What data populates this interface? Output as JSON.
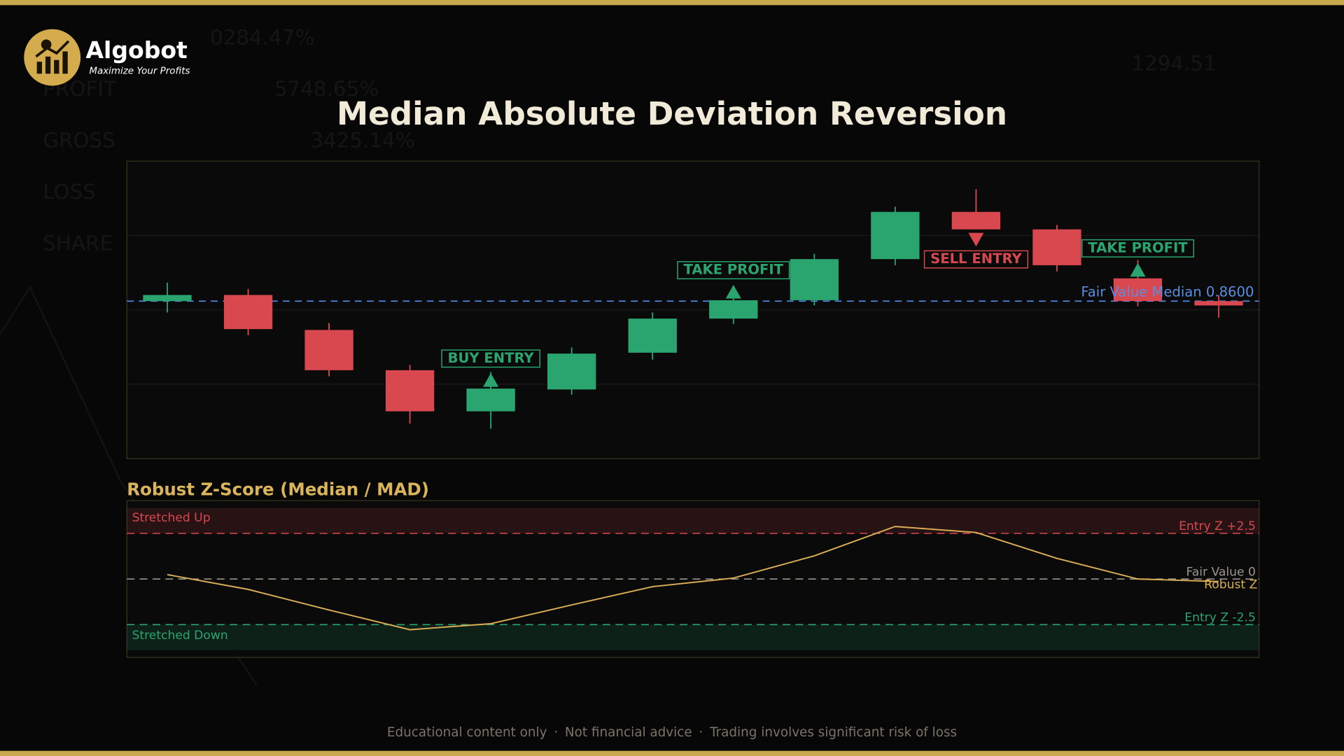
{
  "header": {
    "brand": "Algobot",
    "tagline": "Maximize Your Profits",
    "title": "Median Absolute Deviation Reversion"
  },
  "background": {
    "labels": [
      "0284.47%",
      "PROFIT",
      "5748.65%",
      "GROSS",
      "3425.14%",
      "LOSS",
      "SHARE",
      "1294.51"
    ]
  },
  "chart_data": [
    {
      "type": "candlestick",
      "open": [
        0.86,
        0.8607,
        0.8567,
        0.8521,
        0.8474,
        0.8499,
        0.8541,
        0.858,
        0.8601,
        0.8648,
        0.8702,
        0.8682,
        0.8626,
        0.86
      ],
      "high": [
        0.8621,
        0.8614,
        0.8575,
        0.8527,
        0.8519,
        0.8547,
        0.8587,
        0.8608,
        0.8654,
        0.8708,
        0.8728,
        0.8687,
        0.8647,
        0.8607
      ],
      "low": [
        0.8587,
        0.8561,
        0.8514,
        0.846,
        0.8454,
        0.8493,
        0.8533,
        0.8574,
        0.8595,
        0.8641,
        0.8682,
        0.8634,
        0.8594,
        0.8581
      ],
      "close": [
        0.8607,
        0.8568,
        0.8521,
        0.8474,
        0.85,
        0.854,
        0.858,
        0.8601,
        0.8648,
        0.8702,
        0.8682,
        0.8641,
        0.86,
        0.8595
      ],
      "up_color": "#2aa56f",
      "down_color": "#d9474f",
      "signals": [
        null,
        null,
        null,
        null,
        {
          "label": "BUY ENTRY",
          "direction": "up"
        },
        null,
        null,
        {
          "label": "TAKE PROFIT",
          "direction": "up"
        },
        null,
        null,
        {
          "label": "SELL ENTRY",
          "direction": "down"
        },
        null,
        {
          "label": "TAKE PROFIT",
          "direction": "up"
        },
        null
      ],
      "fair_value": {
        "value": 0.86,
        "label": "Fair Value Median 0.8600",
        "color": "#4a7fd4"
      },
      "ylim": [
        0.842,
        0.876
      ],
      "yticks": [
        0.8505,
        0.859,
        0.8675
      ],
      "grid": true
    },
    {
      "type": "line",
      "title": "Robust Z-Score (Median / MAD)",
      "series": [
        {
          "name": "Robust Z",
          "color": "#d9ad55",
          "values": [
            0.24,
            -0.57,
            -1.7,
            -2.78,
            -2.45,
            -1.42,
            -0.42,
            0.05,
            1.27,
            2.88,
            2.55,
            1.13,
            0.0,
            -0.14
          ]
        }
      ],
      "ylim": [
        -4.3,
        4.3
      ],
      "reference_lines": [
        {
          "value": 2.5,
          "label": "Entry Z +2.5",
          "color": "#d9474f"
        },
        {
          "value": 0,
          "label": "Fair Value 0",
          "color": "#9a958a"
        },
        {
          "value": -2.5,
          "label": "Entry Z -2.5",
          "color": "#2aa56f"
        }
      ],
      "bands": [
        {
          "label": "Stretched Up",
          "from": 2.5,
          "to": 3.9,
          "color": "#d9474f"
        },
        {
          "label": "Stretched Down",
          "from": -2.5,
          "to": -3.9,
          "color": "#2aa56f"
        }
      ]
    }
  ],
  "footer": {
    "items": [
      "Educational content only",
      "Not financial advice",
      "Trading involves significant risk of loss"
    ],
    "separator": "·"
  }
}
